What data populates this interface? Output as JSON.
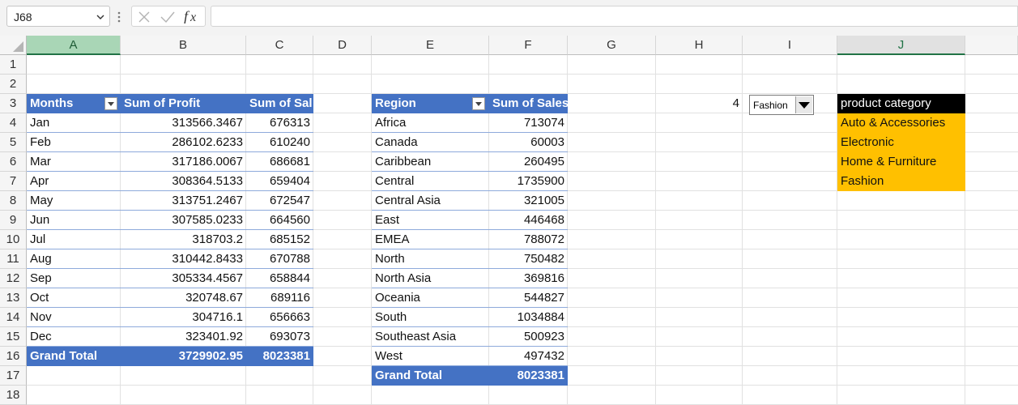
{
  "formula_bar": {
    "name_box": "J68",
    "formula": ""
  },
  "columns": [
    "A",
    "B",
    "C",
    "D",
    "E",
    "F",
    "G",
    "H",
    "I",
    "J"
  ],
  "rows": [
    "1",
    "2",
    "3",
    "4",
    "5",
    "6",
    "7",
    "8",
    "9",
    "10",
    "11",
    "12",
    "13",
    "14",
    "15",
    "16",
    "17",
    "18"
  ],
  "pivot1": {
    "headers": [
      "Months",
      "Sum of Profit",
      "Sum of Sal"
    ],
    "rows": [
      {
        "m": "Jan",
        "p": "313566.3467",
        "s": "676313"
      },
      {
        "m": "Feb",
        "p": "286102.6233",
        "s": "610240"
      },
      {
        "m": "Mar",
        "p": "317186.0067",
        "s": "686681"
      },
      {
        "m": "Apr",
        "p": "308364.5133",
        "s": "659404"
      },
      {
        "m": "May",
        "p": "313751.2467",
        "s": "672547"
      },
      {
        "m": "Jun",
        "p": "307585.0233",
        "s": "664560"
      },
      {
        "m": "Jul",
        "p": "318703.2",
        "s": "685152"
      },
      {
        "m": "Aug",
        "p": "310442.8433",
        "s": "670788"
      },
      {
        "m": "Sep",
        "p": "305334.4567",
        "s": "658844"
      },
      {
        "m": "Oct",
        "p": "320748.67",
        "s": "689116"
      },
      {
        "m": "Nov",
        "p": "304716.1",
        "s": "656663"
      },
      {
        "m": "Dec",
        "p": "323401.92",
        "s": "693073"
      }
    ],
    "total": {
      "label": "Grand Total",
      "p": "3729902.95",
      "s": "8023381"
    }
  },
  "pivot2": {
    "headers": [
      "Region",
      "Sum of Sales"
    ],
    "rows": [
      {
        "r": "Africa",
        "s": "713074"
      },
      {
        "r": "Canada",
        "s": "60003"
      },
      {
        "r": "Caribbean",
        "s": "260495"
      },
      {
        "r": "Central",
        "s": "1735900"
      },
      {
        "r": "Central Asia",
        "s": "321005"
      },
      {
        "r": "East",
        "s": "446468"
      },
      {
        "r": "EMEA",
        "s": "788072"
      },
      {
        "r": "North",
        "s": "750482"
      },
      {
        "r": "North Asia",
        "s": "369816"
      },
      {
        "r": "Oceania",
        "s": "544827"
      },
      {
        "r": "South",
        "s": "1034884"
      },
      {
        "r": "Southeast Asia",
        "s": "500923"
      },
      {
        "r": "West",
        "s": "497432"
      }
    ],
    "total": {
      "label": "Grand Total",
      "s": "8023381"
    }
  },
  "h3_value": "4",
  "dropdown_value": "Fashion",
  "category": {
    "header": "product category",
    "items": [
      "Auto & Accessories",
      "Electronic",
      "Home & Furniture",
      "Fashion"
    ]
  },
  "colors": {
    "pivot_header": "#4472c4",
    "category_header": "#000000",
    "category_fill": "#ffc000",
    "selected_column": "#a9d6b6"
  }
}
